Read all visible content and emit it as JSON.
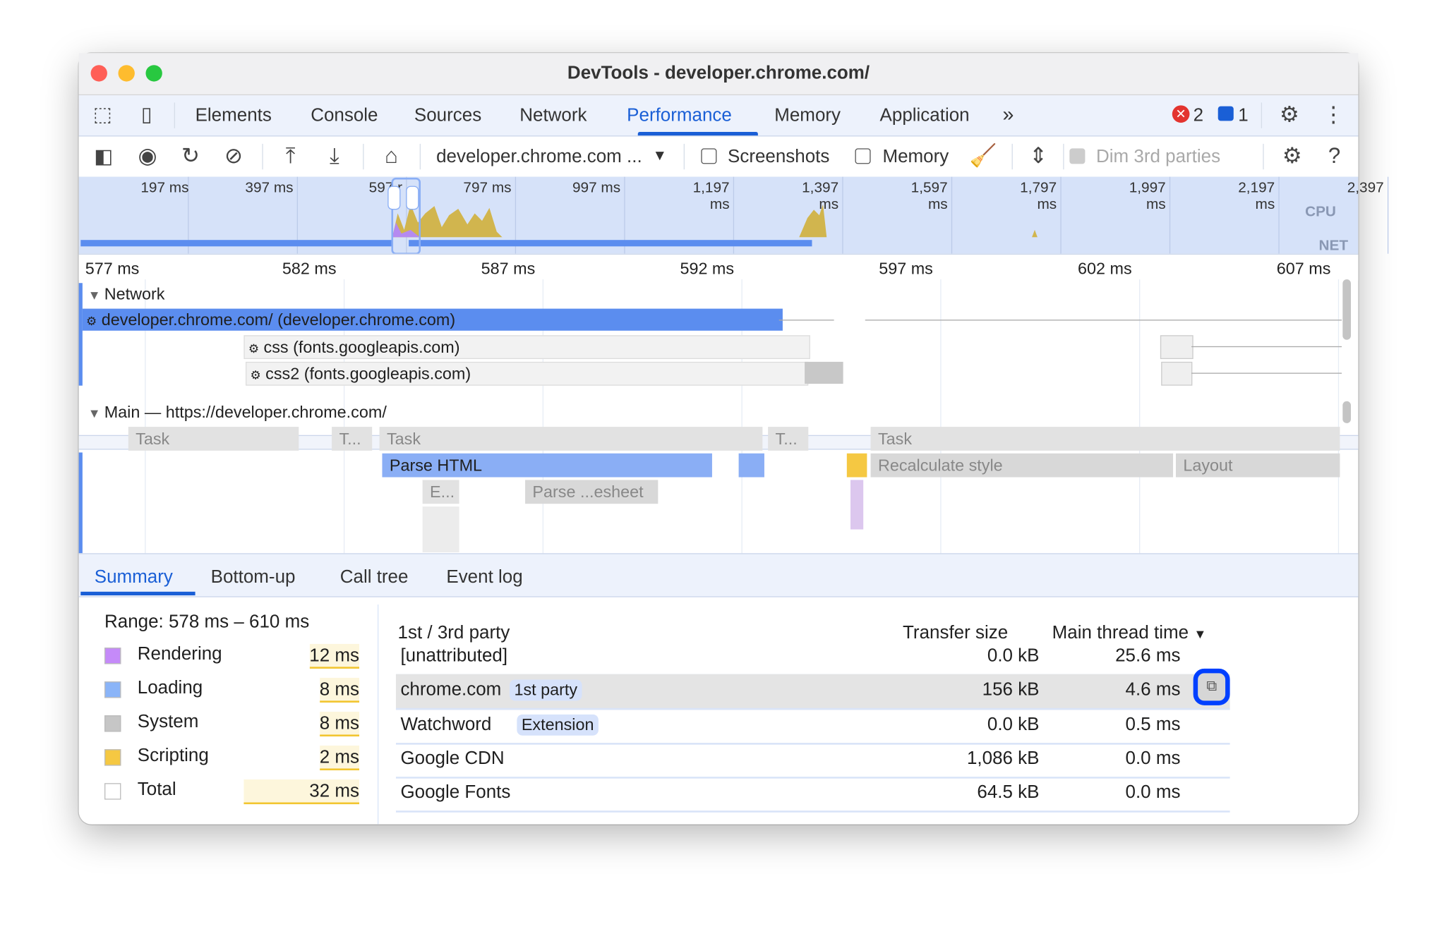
{
  "window": {
    "title": "DevTools - developer.chrome.com/"
  },
  "tabs": [
    {
      "label": "Elements"
    },
    {
      "label": "Console"
    },
    {
      "label": "Sources"
    },
    {
      "label": "Network"
    },
    {
      "label": "Performance",
      "active": true
    },
    {
      "label": "Memory"
    },
    {
      "label": "Application"
    }
  ],
  "tabbar": {
    "more_icon": "chevron-double-right-icon",
    "errors": "2",
    "messages": "1"
  },
  "toolbar": {
    "url_select": "developer.chrome.com ...",
    "screenshots_label": "Screenshots",
    "screenshots_checked": false,
    "memory_label": "Memory",
    "memory_checked": false,
    "dim_label": "Dim 3rd parties",
    "dim_checked": false
  },
  "overview": {
    "ticks": [
      "197 ms",
      "397 ms",
      "597 r",
      "797 ms",
      "997 ms",
      "1,197 ms",
      "1,397 ms",
      "1,597 ms",
      "1,797 ms",
      "1,997 ms",
      "2,197 ms",
      "2,397"
    ],
    "cpu_label": "CPU",
    "net_label": "NET"
  },
  "ruler": {
    "ticks": [
      "577 ms",
      "582 ms",
      "587 ms",
      "592 ms",
      "597 ms",
      "602 ms",
      "607 ms"
    ]
  },
  "network": {
    "title": "Network",
    "requests": [
      {
        "label": "developer.chrome.com/ (developer.chrome.com)"
      },
      {
        "label": "css (fonts.googleapis.com)"
      },
      {
        "label": "css2 (fonts.googleapis.com)"
      }
    ]
  },
  "main": {
    "title": "Main — https://developer.chrome.com/",
    "tasks": [
      "Task",
      "T...",
      "Task",
      "T...",
      "Task"
    ],
    "events": [
      "Parse HTML",
      "Recalculate style",
      "Layout"
    ],
    "sub_events": [
      "E...",
      "Parse ...esheet"
    ]
  },
  "bottom_tabs": [
    {
      "label": "Summary",
      "active": true
    },
    {
      "label": "Bottom-up"
    },
    {
      "label": "Call tree"
    },
    {
      "label": "Event log"
    }
  ],
  "summary": {
    "range": "Range: 578 ms – 610 ms",
    "categories": [
      {
        "label": "Rendering",
        "value": "12 ms",
        "color": "#c58af9"
      },
      {
        "label": "Loading",
        "value": "8 ms",
        "color": "#8ab4f8"
      },
      {
        "label": "System",
        "value": "8 ms",
        "color": "#c6c6c6"
      },
      {
        "label": "Scripting",
        "value": "2 ms",
        "color": "#f5c842"
      },
      {
        "label": "Total",
        "value": "32 ms",
        "color": "#ffffff"
      }
    ]
  },
  "party_table": {
    "headers": {
      "name": "1st / 3rd party",
      "transfer": "Transfer size",
      "time": "Main thread time"
    },
    "rows": [
      {
        "name": "[unattributed]",
        "badge": "",
        "transfer": "0.0 kB",
        "time": "25.6 ms"
      },
      {
        "name": "chrome.com",
        "badge": "1st party",
        "transfer": "156 kB",
        "time": "4.6 ms",
        "selected": true
      },
      {
        "name": "Watchword",
        "badge": "Extension",
        "transfer": "0.0 kB",
        "time": "0.5 ms"
      },
      {
        "name": "Google CDN",
        "badge": "",
        "transfer": "1,086 kB",
        "time": "0.0 ms"
      },
      {
        "name": "Google Fonts",
        "badge": "",
        "transfer": "64.5 kB",
        "time": "0.0 ms"
      }
    ]
  },
  "colors": {
    "accent": "#1a5fd6",
    "network_bar": "#5b8def",
    "parse_html": "#8aaef5",
    "scripting": "#f5c842",
    "highlight_ring": "#0040ff"
  }
}
